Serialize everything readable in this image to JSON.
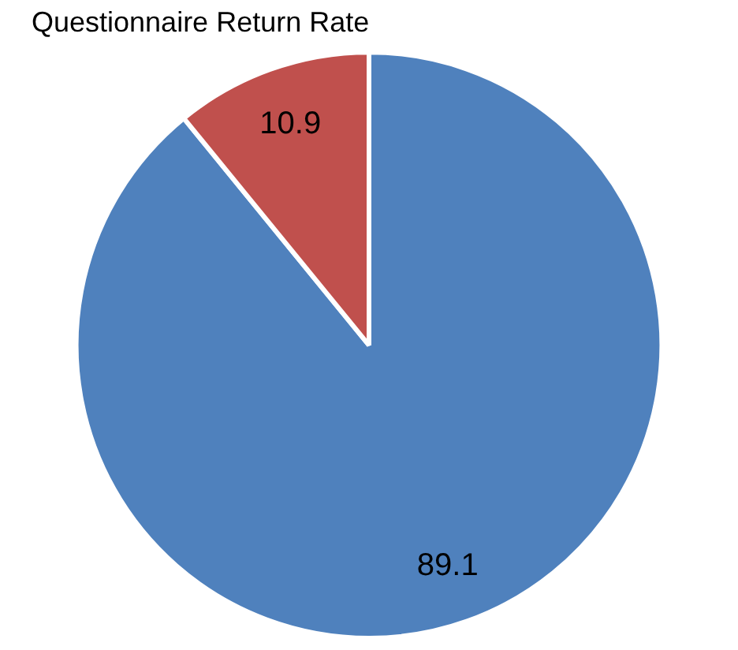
{
  "chart_data": {
    "type": "pie",
    "title": "Questionnaire Return Rate",
    "categories": [
      null,
      null
    ],
    "values": [
      89.1,
      10.9
    ],
    "colors": [
      "#4f81bd",
      "#c0504d"
    ],
    "data_labels": true,
    "legend": false
  }
}
